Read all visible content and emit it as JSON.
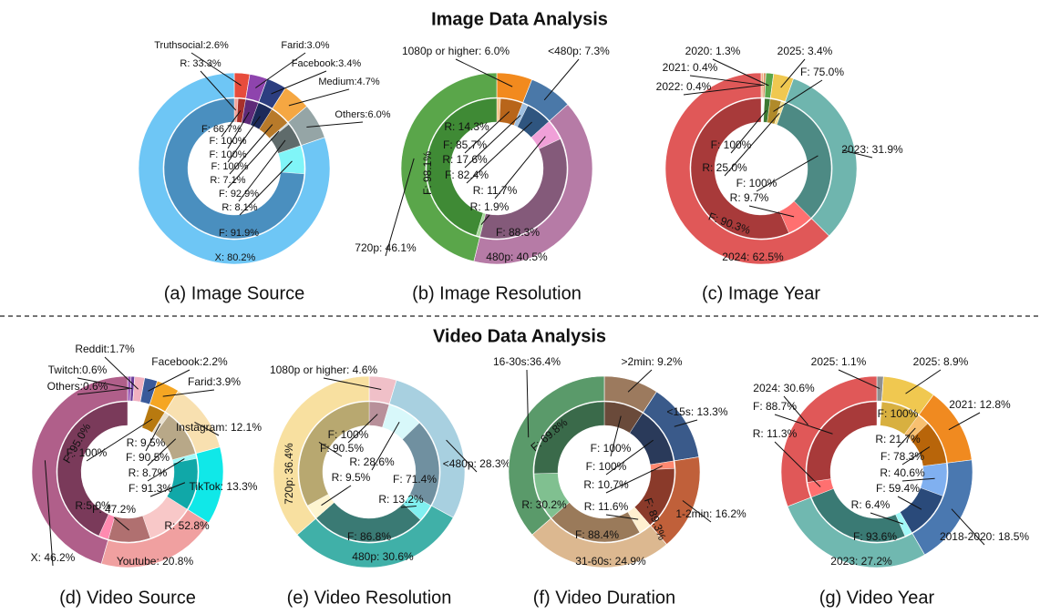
{
  "titles": [
    "Image Data Analysis",
    "Video Data Analysis"
  ],
  "chart_data": [
    {
      "type": "donut",
      "subtitle": "(a) Image Source",
      "values": [
        2.6,
        3.0,
        3.4,
        4.7,
        6.0,
        80.2
      ],
      "value_labels": [
        "Truthsocial:2.6%",
        "Farid:3.0%",
        "Facebook:3.4%",
        "Medium:4.7%",
        "Others:6.0%",
        "X: 80.2%"
      ],
      "colors": [
        "#e74c3c",
        "#8e44ad",
        "#2c3e80",
        "#f5a742",
        "#95a5a6",
        "#6ec6f5"
      ],
      "inner": {
        "values": [
          [
            33.3,
            66.7
          ],
          [
            100
          ],
          [
            100
          ],
          [
            100
          ],
          [
            7.1,
            92.9
          ],
          [
            8.1,
            91.9
          ]
        ],
        "value_labels": [
          [
            "R: 33.3%",
            "F: 66.7%"
          ],
          [
            "F: 100%"
          ],
          [
            "F: 100%"
          ],
          [
            "F: 100%"
          ],
          [
            "R: 7.1%",
            "F: 92.9%"
          ],
          [
            "R: 8.1%",
            "F: 91.9%"
          ]
        ],
        "colors": [
          [
            "#f5a49a",
            "#a8302a"
          ],
          [
            "#5e2a78"
          ],
          [
            "#1c2a5a"
          ],
          [
            "#b87a2a"
          ],
          [
            "#d0d8d8",
            "#5f6b6b"
          ],
          [
            "#80f5f8",
            "#4a8fbf"
          ]
        ]
      }
    },
    {
      "type": "donut",
      "subtitle": "(b) Image Resolution",
      "values": [
        6.0,
        7.3,
        40.5,
        46.1
      ],
      "value_labels": [
        "1080p or higher: 6.0%",
        "<480p: 7.3%",
        "480p: 40.5%",
        "720p: 46.1%"
      ],
      "colors": [
        "#f28a1e",
        "#4a78a8",
        "#b67ba6",
        "#5aa64a"
      ],
      "inner": {
        "values": [
          [
            14.3,
            85.7
          ],
          [
            17.6,
            82.4
          ],
          [
            11.7,
            88.3
          ],
          [
            1.9,
            98.1
          ]
        ],
        "value_labels": [
          [
            "R: 14.3%",
            "F: 85.7%"
          ],
          [
            "R: 17.6%",
            "F: 82.4%"
          ],
          [
            "R: 11.7%",
            "F: 88.3%"
          ],
          [
            "R: 1.9%",
            "F: 98.1%"
          ]
        ],
        "colors": [
          [
            "#f7c48a",
            "#b8651a"
          ],
          [
            "#9fbfe0",
            "#2f557f"
          ],
          [
            "#f0a0d8",
            "#845a7a"
          ],
          [
            "#a7d99b",
            "#3f8a35"
          ]
        ]
      }
    },
    {
      "type": "donut",
      "subtitle": "(c) Image Year",
      "values": [
        0.4,
        0.4,
        1.3,
        3.4,
        31.9,
        62.5
      ],
      "value_labels": [
        "2022: 0.4%",
        "2021: 0.4%",
        "2020: 1.3%",
        "2025: 3.4%",
        "2023: 31.9%",
        "2024: 62.5%"
      ],
      "colors": [
        "#f0b080",
        "#d89060",
        "#5aa64a",
        "#f0c850",
        "#6fb5ae",
        "#e05858"
      ],
      "inner": {
        "values": [
          [],
          [],
          [
            100
          ],
          [
            75.0,
            25.0
          ],
          [
            100
          ],
          [
            9.7,
            90.3
          ]
        ],
        "value_labels": [
          [],
          [],
          [
            "F: 100%"
          ],
          [
            "F: 75.0%",
            "R: 25.0%"
          ],
          [
            "F: 100%"
          ],
          [
            "R: 9.7%",
            "F: 90.3%"
          ]
        ],
        "colors": [
          [],
          [],
          [
            "#3d7a33"
          ],
          [
            "#b08a2a",
            "#f5e090"
          ],
          [
            "#4d8a84"
          ],
          [
            "#ff7070",
            "#a83a3a"
          ]
        ]
      }
    },
    {
      "type": "donut",
      "subtitle": "(d) Video Source",
      "values": [
        0.6,
        0.6,
        1.7,
        2.2,
        3.9,
        12.1,
        13.3,
        20.8,
        46.2
      ],
      "value_labels": [
        "Others:0.6%",
        "Twitch:0.6%",
        "Reddit:1.7%",
        "Facebook:2.2%",
        "Farid:3.9%",
        "Instagram: 12.1%",
        "TikTok: 13.3%",
        "Youtube: 20.8%",
        "X: 46.2%"
      ],
      "colors": [
        "#9b59b6",
        "#6a3d9a",
        "#f0b0c0",
        "#3a5a9a",
        "#f5a623",
        "#f8e0b0",
        "#10e8e8",
        "#f0a0a0",
        "#b05f8a"
      ],
      "inner": {
        "values": [
          [],
          [],
          [],
          [],
          [
            100
          ],
          [
            9.5,
            90.5
          ],
          [
            8.7,
            91.3
          ],
          [
            52.8,
            47.2
          ],
          [
            5.0,
            95.0
          ]
        ],
        "value_labels": [
          [],
          [],
          [],
          [],
          [
            "F: 100%"
          ],
          [
            "R: 9.5%",
            "F: 90.5%"
          ],
          [
            "R: 8.7%",
            "F: 91.3%"
          ],
          [
            "R: 52.8%",
            "F: 47.2%"
          ],
          [
            "R:5.0%",
            "F: 95.0%"
          ]
        ],
        "colors": [
          [],
          [],
          [],
          [],
          [
            "#b87a10"
          ],
          [
            "#e8e0d0",
            "#b8a888"
          ],
          [
            "#a0fafa",
            "#10a8a8"
          ],
          [
            "#f8c8c8",
            "#b07070"
          ],
          [
            "#ff8ab0",
            "#7a3a5a"
          ]
        ]
      }
    },
    {
      "type": "donut",
      "subtitle": "(e) Video Resolution",
      "values": [
        4.6,
        28.3,
        30.6,
        36.4
      ],
      "value_labels": [
        "1080p or higher: 4.6%",
        "<480p: 28.3%",
        "480p: 30.6%",
        "720p: 36.4%"
      ],
      "colors": [
        "#f0c0c8",
        "#a8d0e0",
        "#40b0a8",
        "#f8e0a0"
      ],
      "inner": {
        "values": [
          [
            100
          ],
          [
            28.6,
            71.4
          ],
          [
            13.2,
            86.8
          ],
          [
            9.5,
            90.5
          ]
        ],
        "value_labels": [
          [
            "F: 100%"
          ],
          [
            "R: 28.6%",
            "F: 71.4%"
          ],
          [
            "R: 13.2%",
            "F: 86.8%"
          ],
          [
            "R: 9.5%",
            "F: 90.5%"
          ]
        ],
        "colors": [
          [
            "#b8909a"
          ],
          [
            "#d8f8fa",
            "#7090a0"
          ],
          [
            "#80f0f0",
            "#3a7a74"
          ],
          [
            "#fdf5d0",
            "#b8a870"
          ]
        ]
      }
    },
    {
      "type": "donut",
      "subtitle": "(f) Video Duration",
      "values": [
        9.2,
        13.3,
        16.2,
        24.9,
        36.4
      ],
      "value_labels": [
        ">2min: 9.2%",
        "<15s: 13.3%",
        "1-2min: 16.2%",
        "31-60s: 24.9%",
        "16-30s:36.4%"
      ],
      "colors": [
        "#9c7a5e",
        "#3a5a8a",
        "#c0603a",
        "#dcb890",
        "#5a9a6a"
      ],
      "inner": {
        "values": [
          [
            100
          ],
          [
            100
          ],
          [
            10.7,
            89.3
          ],
          [
            11.6,
            88.4
          ],
          [
            30.2,
            69.8
          ]
        ],
        "value_labels": [
          [
            "F: 100%"
          ],
          [
            "F: 100%"
          ],
          [
            "R: 10.7%",
            "F: 89.3%"
          ],
          [
            "R: 11.6%",
            "F: 88.4%"
          ],
          [
            "R: 30.2%",
            "F: 69.8%"
          ]
        ],
        "colors": [
          [
            "#6a4a3a"
          ],
          [
            "#2a3a5a"
          ],
          [
            "#ff8870",
            "#8a3a2a"
          ],
          [
            "#fff0d0",
            "#9a7a5a"
          ],
          [
            "#80c090",
            "#3a6a4a"
          ]
        ]
      }
    },
    {
      "type": "donut",
      "subtitle": "(g) Video Year",
      "values": [
        1.1,
        8.9,
        12.8,
        18.5,
        27.2,
        30.6
      ],
      "value_labels": [
        "2025: 1.1%",
        "2025: 8.9%",
        "2021: 12.8%",
        "2018-2020: 18.5%",
        "2023: 27.2%",
        "2024: 30.6%"
      ],
      "colors": [
        "#909090",
        "#f0c850",
        "#f08a20",
        "#4a78b0",
        "#70b8b0",
        "#e05858"
      ],
      "inner": {
        "values": [
          [],
          [
            100
          ],
          [
            21.7,
            78.3
          ],
          [
            40.6,
            59.4
          ],
          [
            6.4,
            93.6
          ],
          [
            11.3,
            88.7
          ]
        ],
        "value_labels": [
          [],
          [
            "F: 100%"
          ],
          [
            "R: 21.7%",
            "F: 78.3%"
          ],
          [
            "R: 40.6%",
            "F: 59.4%"
          ],
          [
            "R: 6.4%",
            "F: 93.6%"
          ],
          [
            "R: 11.3%",
            "F: 88.7%"
          ]
        ],
        "colors": [
          [],
          [
            "#d8b040"
          ],
          [
            "#f8c070",
            "#b8650a"
          ],
          [
            "#80b0f0",
            "#2a4a7a"
          ],
          [
            "#a0f8f8",
            "#3a7a74"
          ],
          [
            "#ff7070",
            "#a83a3a"
          ]
        ]
      }
    }
  ]
}
